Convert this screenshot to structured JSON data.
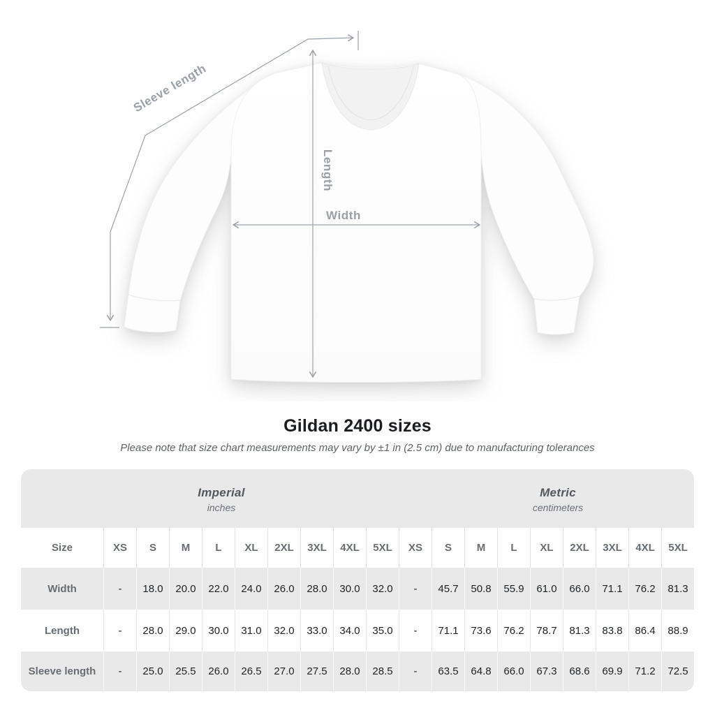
{
  "title": "Gildan 2400 sizes",
  "subtitle": "Please note that size chart measurements may vary by ±1 in (2.5 cm) due to manufacturing tolerances",
  "diagram": {
    "sleeve_length_label": "Sleeve length",
    "length_label": "Length",
    "width_label": "Width"
  },
  "table": {
    "unit_groups": [
      {
        "name": "Imperial",
        "unit": "inches"
      },
      {
        "name": "Metric",
        "unit": "centimeters"
      }
    ],
    "size_header_label": "Size",
    "sizes": [
      "XS",
      "S",
      "M",
      "L",
      "XL",
      "2XL",
      "3XL",
      "4XL",
      "5XL"
    ],
    "rows": [
      {
        "label": "Width",
        "imperial": [
          "-",
          "18.0",
          "20.0",
          "22.0",
          "24.0",
          "26.0",
          "28.0",
          "30.0",
          "32.0"
        ],
        "metric": [
          "-",
          "45.7",
          "50.8",
          "55.9",
          "61.0",
          "66.0",
          "71.1",
          "76.2",
          "81.3"
        ]
      },
      {
        "label": "Length",
        "imperial": [
          "-",
          "28.0",
          "29.0",
          "30.0",
          "31.0",
          "32.0",
          "33.0",
          "34.0",
          "35.0"
        ],
        "metric": [
          "-",
          "71.1",
          "73.6",
          "76.2",
          "78.7",
          "81.3",
          "83.8",
          "86.4",
          "88.9"
        ]
      },
      {
        "label": "Sleeve length",
        "imperial": [
          "-",
          "25.0",
          "25.5",
          "26.0",
          "26.5",
          "27.0",
          "27.5",
          "28.0",
          "28.5"
        ],
        "metric": [
          "-",
          "63.5",
          "64.8",
          "66.0",
          "67.3",
          "68.6",
          "69.9",
          "71.2",
          "72.5"
        ]
      }
    ]
  },
  "colors": {
    "table_band_gray": "#e9e9e9",
    "title_text": "#1a1c1f",
    "muted_text": "#676d73",
    "value_text": "#1e2124",
    "diagram_line": "#9ba2a9",
    "diagram_label": "#99a0a7"
  }
}
